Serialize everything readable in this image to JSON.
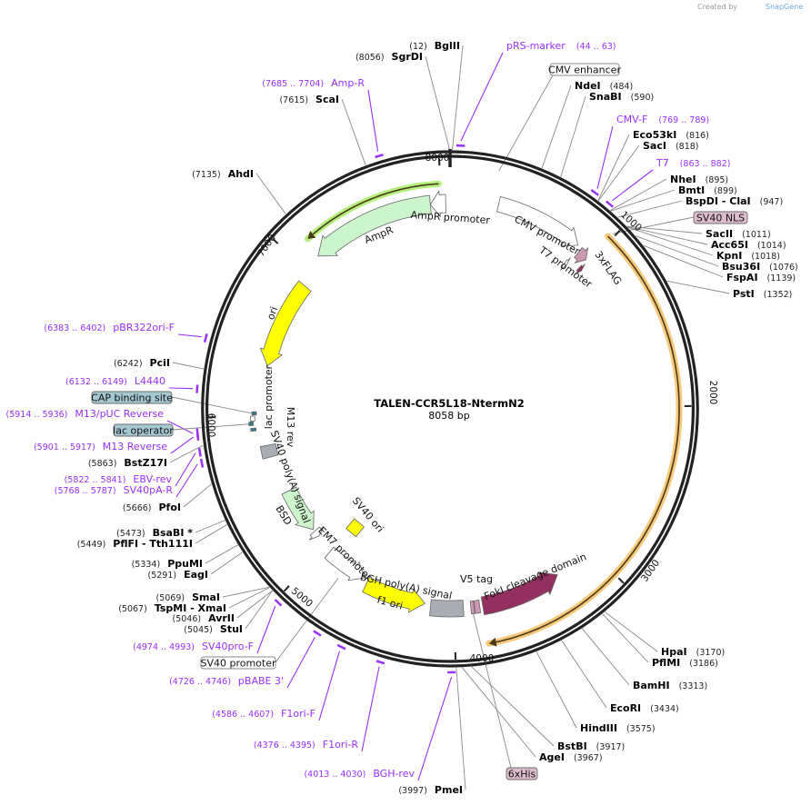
{
  "watermark": {
    "text": "Created by",
    "brand": "SnapGene"
  },
  "plasmid": {
    "name": "TALEN-CCR5L18-NtermN2",
    "length_label": "8058 bp",
    "length": 8058
  },
  "ticks": [
    {
      "pos": 1000,
      "label": "1000"
    },
    {
      "pos": 2000,
      "label": "2000"
    },
    {
      "pos": 3000,
      "label": "3000"
    },
    {
      "pos": 4000,
      "label": "4000"
    },
    {
      "pos": 5000,
      "label": "5000"
    },
    {
      "pos": 6000,
      "label": "6000"
    },
    {
      "pos": 7000,
      "label": "7000"
    },
    {
      "pos": 8000,
      "label": "8000"
    }
  ],
  "enzymes": [
    {
      "name": "BglII",
      "pos": 12,
      "pos_label": "(12)"
    },
    {
      "name": "SgrDI",
      "pos": 8056,
      "pos_label": "(8056)"
    },
    {
      "name": "ScaI",
      "pos": 7615,
      "pos_label": "(7615)"
    },
    {
      "name": "AhdI",
      "pos": 7135,
      "pos_label": "(7135)"
    },
    {
      "name": "PciI",
      "pos": 6242,
      "pos_label": "(6242)"
    },
    {
      "name": "BstZ17I",
      "pos": 5863,
      "pos_label": "(5863)"
    },
    {
      "name": "PfoI",
      "pos": 5666,
      "pos_label": "(5666)"
    },
    {
      "name": "BsaBI *",
      "pos": 5473,
      "pos_label": "(5473)"
    },
    {
      "name": "PflFI  - Tth111I",
      "pos": 5449,
      "pos_label": "(5449)"
    },
    {
      "name": "PpuMI",
      "pos": 5334,
      "pos_label": "(5334)"
    },
    {
      "name": "EagI",
      "pos": 5291,
      "pos_label": "(5291)"
    },
    {
      "name": "SmaI",
      "pos": 5069,
      "pos_label": "(5069)"
    },
    {
      "name": "TspMI  - XmaI",
      "pos": 5067,
      "pos_label": "(5067)"
    },
    {
      "name": "AvrII",
      "pos": 5046,
      "pos_label": "(5046)"
    },
    {
      "name": "StuI",
      "pos": 5045,
      "pos_label": "(5045)"
    },
    {
      "name": "PmeI",
      "pos": 3997,
      "pos_label": "(3997)"
    },
    {
      "name": "NdeI",
      "pos": 484,
      "pos_label": "(484)"
    },
    {
      "name": "SnaBI",
      "pos": 590,
      "pos_label": "(590)"
    },
    {
      "name": "Eco53kI",
      "pos": 816,
      "pos_label": "(816)"
    },
    {
      "name": "SacI",
      "pos": 818,
      "pos_label": "(818)"
    },
    {
      "name": "NheI",
      "pos": 895,
      "pos_label": "(895)"
    },
    {
      "name": "BmtI",
      "pos": 899,
      "pos_label": "(899)"
    },
    {
      "name": "BspDI  - ClaI",
      "pos": 947,
      "pos_label": "(947)"
    },
    {
      "name": "SacII",
      "pos": 1011,
      "pos_label": "(1011)"
    },
    {
      "name": "Acc65I",
      "pos": 1014,
      "pos_label": "(1014)"
    },
    {
      "name": "KpnI",
      "pos": 1018,
      "pos_label": "(1018)"
    },
    {
      "name": "Bsu36I",
      "pos": 1076,
      "pos_label": "(1076)"
    },
    {
      "name": "FspAI",
      "pos": 1139,
      "pos_label": "(1139)"
    },
    {
      "name": "PstI",
      "pos": 1352,
      "pos_label": "(1352)"
    },
    {
      "name": "HpaI",
      "pos": 3170,
      "pos_label": "(3170)"
    },
    {
      "name": "PflMI",
      "pos": 3186,
      "pos_label": "(3186)"
    },
    {
      "name": "BamHI",
      "pos": 3313,
      "pos_label": "(3313)"
    },
    {
      "name": "EcoRI",
      "pos": 3434,
      "pos_label": "(3434)"
    },
    {
      "name": "HindIII",
      "pos": 3575,
      "pos_label": "(3575)"
    },
    {
      "name": "BstBI",
      "pos": 3917,
      "pos_label": "(3917)"
    },
    {
      "name": "AgeI",
      "pos": 3967,
      "pos_label": "(3967)"
    }
  ],
  "primers": [
    {
      "name": "pRS-marker",
      "range": "(44 .. 63)",
      "start": 44,
      "end": 63
    },
    {
      "name": "CMV-F",
      "range": "(769 .. 789)",
      "start": 769,
      "end": 789
    },
    {
      "name": "T7",
      "range": "(863 .. 882)",
      "start": 863,
      "end": 882
    },
    {
      "name": "Amp-R",
      "range": "(7685 .. 7704)",
      "start": 7685,
      "end": 7704
    },
    {
      "name": "pBR322ori-F",
      "range": "(6383 .. 6402)",
      "start": 6383,
      "end": 6402
    },
    {
      "name": "L4440",
      "range": "(6132 .. 6149)",
      "start": 6132,
      "end": 6149
    },
    {
      "name": "M13/pUC Reverse",
      "range": "(5914 .. 5936)",
      "start": 5914,
      "end": 5936
    },
    {
      "name": "M13 Reverse",
      "range": "(5901 .. 5917)",
      "start": 5901,
      "end": 5917
    },
    {
      "name": "EBV-rev",
      "range": "(5822 .. 5841)",
      "start": 5822,
      "end": 5841
    },
    {
      "name": "SV40pA-R",
      "range": "(5768 .. 5787)",
      "start": 5768,
      "end": 5787
    },
    {
      "name": "SV40pro-F",
      "range": "(4974 .. 4993)",
      "start": 4974,
      "end": 4993
    },
    {
      "name": "pBABE 3'",
      "range": "(4726 .. 4746)",
      "start": 4726,
      "end": 4746
    },
    {
      "name": "F1ori-F",
      "range": "(4586 .. 4607)",
      "start": 4586,
      "end": 4607
    },
    {
      "name": "F1ori-R",
      "range": "(4376 .. 4395)",
      "start": 4376,
      "end": 4395
    },
    {
      "name": "BGH-rev",
      "range": "(4013 .. 4030)",
      "start": 4013,
      "end": 4030
    }
  ],
  "features": [
    {
      "name": "CMV enhancer",
      "start": 235,
      "end": 300,
      "direction": 1,
      "color": "#ffffff",
      "shape": "none"
    },
    {
      "name": "CMV promoter",
      "start": 310,
      "end": 875,
      "direction": 1,
      "color": "#ffffff",
      "shape": "arrow"
    },
    {
      "name": "T7 promoter",
      "start": 878,
      "end": 897,
      "direction": 1,
      "color": "#ffffff",
      "shape": "arrow"
    },
    {
      "name": "3xFLAG",
      "start": 905,
      "end": 972,
      "direction": 1,
      "color": "#cc99b3",
      "shape": "arrow"
    },
    {
      "name": "SV40 NLS",
      "start": 975,
      "end": 1000,
      "direction": 1,
      "color": "#943061",
      "shape": "arrow"
    },
    {
      "name": "FokI cleavage domain",
      "start": 3270,
      "end": 3810,
      "direction": -1,
      "color": "#943061",
      "shape": "arrow"
    },
    {
      "name": "V5 tag",
      "start": 3830,
      "end": 3865,
      "direction": -1,
      "color": "#cc99b3",
      "shape": "box"
    },
    {
      "name": "6xHis",
      "start": 3868,
      "end": 3890,
      "direction": -1,
      "color": "#cc99b3",
      "shape": "box"
    },
    {
      "name": "bGH poly(A) signal",
      "start": 3940,
      "end": 4160,
      "direction": -1,
      "color": "#a9adb3",
      "shape": "box"
    },
    {
      "name": "f1 ori",
      "start": 4200,
      "end": 4620,
      "direction": -1,
      "color": "#ffff00",
      "shape": "arrow"
    },
    {
      "name": "SV40 promoter",
      "start": 4650,
      "end": 4950,
      "direction": -1,
      "color": "#ffffff",
      "shape": "arrow"
    },
    {
      "name": "SV40 ori",
      "start": 4900,
      "end": 4935,
      "direction": 0,
      "color": "#ffff00",
      "shape": "diamond"
    },
    {
      "name": "EM7 promoter",
      "start": 5080,
      "end": 5125,
      "direction": -1,
      "color": "#ffffff",
      "shape": "arrow"
    },
    {
      "name": "BSD",
      "start": 5140,
      "end": 5460,
      "direction": -1,
      "color": "#ccf5cc",
      "shape": "arrow"
    },
    {
      "name": "SV40 poly(A) signal",
      "start": 5720,
      "end": 5800,
      "direction": 0,
      "color": "#a9adb3",
      "shape": "box"
    },
    {
      "name": "M13 rev",
      "start": 5905,
      "end": 5922,
      "direction": -1,
      "color": "#2d7f8f",
      "shape": "box"
    },
    {
      "name": "lac operator",
      "start": 5940,
      "end": 5962,
      "direction": 0,
      "color": "#2d7f8f",
      "shape": "box"
    },
    {
      "name": "lac promoter",
      "start": 5968,
      "end": 5998,
      "direction": -1,
      "color": "#ffffff",
      "shape": "box"
    },
    {
      "name": "CAP binding site",
      "start": 6005,
      "end": 6025,
      "direction": 0,
      "color": "#2d7f8f",
      "shape": "box"
    },
    {
      "name": "ori",
      "start": 6330,
      "end": 6920,
      "direction": -1,
      "color": "#ffff00",
      "shape": "arrow"
    },
    {
      "name": "AmpR",
      "start": 7120,
      "end": 7930,
      "direction": -1,
      "color": "#ccf5cc",
      "shape": "arrow"
    },
    {
      "name": "AmpR promoter",
      "start": 7930,
      "end": 8030,
      "direction": -1,
      "color": "#ffffff",
      "shape": "arrow"
    }
  ],
  "orfs": [
    {
      "start": 975,
      "end": 3810,
      "direction": 1,
      "color": "#f7c87a"
    },
    {
      "start": 7140,
      "end": 7990,
      "direction": -1,
      "color": "#b5f07e"
    }
  ],
  "colors": {
    "primer": "#9b30ff",
    "backbone": "#222222",
    "callout_pink": "#dfbccd",
    "callout_teal": "#a5c9d3"
  }
}
